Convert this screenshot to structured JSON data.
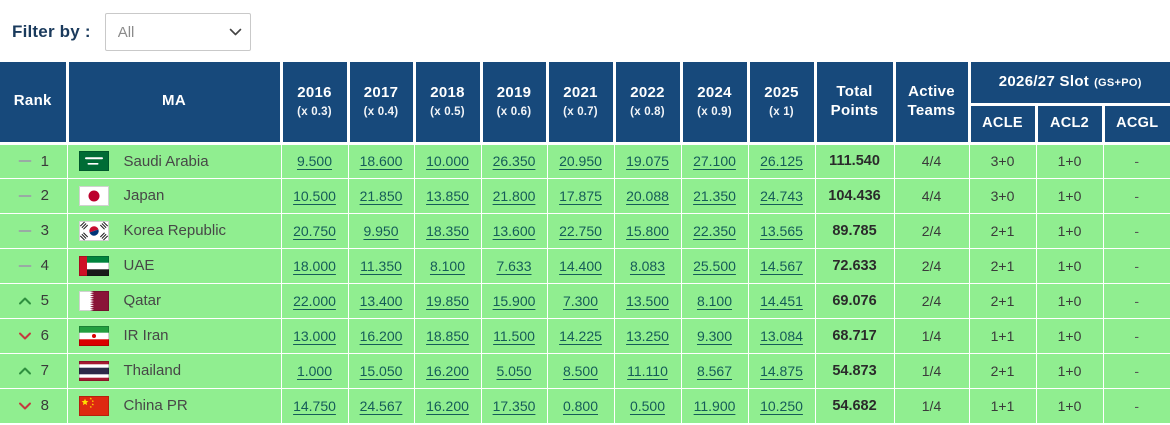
{
  "filter": {
    "label": "Filter by :",
    "selected": "All"
  },
  "colors": {
    "header_bg": "#17497B",
    "row_bg": "#90EE90",
    "link": "#155C58",
    "rank_up": "#2F8F3F",
    "rank_down": "#C6383F",
    "rank_same": "#9AA0A6"
  },
  "table": {
    "headers": {
      "rank": "Rank",
      "ma": "MA",
      "years": [
        {
          "year": "2016",
          "mult": "(x 0.3)"
        },
        {
          "year": "2017",
          "mult": "(x 0.4)"
        },
        {
          "year": "2018",
          "mult": "(x 0.5)"
        },
        {
          "year": "2019",
          "mult": "(x 0.6)"
        },
        {
          "year": "2021",
          "mult": "(x 0.7)"
        },
        {
          "year": "2022",
          "mult": "(x 0.8)"
        },
        {
          "year": "2024",
          "mult": "(x 0.9)"
        },
        {
          "year": "2025",
          "mult": "(x 1)"
        }
      ],
      "total": "Total Points",
      "active": "Active Teams",
      "slot_title": "2026/27 Slot",
      "slot_sub": "(GS+PO)",
      "slot_cols": [
        "ACLE",
        "ACL2",
        "ACGL"
      ]
    },
    "rows": [
      {
        "movement": "same",
        "rank": "1",
        "flag": "sa",
        "country": "Saudi Arabia",
        "values": [
          "9.500",
          "18.600",
          "10.000",
          "26.350",
          "20.950",
          "19.075",
          "27.100",
          "26.125"
        ],
        "total": "111.540",
        "active": "4/4",
        "acle": "3+0",
        "acl2": "1+0",
        "acgl": "-"
      },
      {
        "movement": "same",
        "rank": "2",
        "flag": "jp",
        "country": "Japan",
        "values": [
          "10.500",
          "21.850",
          "13.850",
          "21.800",
          "17.875",
          "20.088",
          "21.350",
          "24.743"
        ],
        "total": "104.436",
        "active": "4/4",
        "acle": "3+0",
        "acl2": "1+0",
        "acgl": "-"
      },
      {
        "movement": "same",
        "rank": "3",
        "flag": "kr",
        "country": "Korea Republic",
        "values": [
          "20.750",
          "9.950",
          "18.350",
          "13.600",
          "22.750",
          "15.800",
          "22.350",
          "13.565"
        ],
        "total": "89.785",
        "active": "2/4",
        "acle": "2+1",
        "acl2": "1+0",
        "acgl": "-"
      },
      {
        "movement": "same",
        "rank": "4",
        "flag": "ae",
        "country": "UAE",
        "values": [
          "18.000",
          "11.350",
          "8.100",
          "7.633",
          "14.400",
          "8.083",
          "25.500",
          "14.567"
        ],
        "total": "72.633",
        "active": "2/4",
        "acle": "2+1",
        "acl2": "1+0",
        "acgl": "-"
      },
      {
        "movement": "up",
        "rank": "5",
        "flag": "qa",
        "country": "Qatar",
        "values": [
          "22.000",
          "13.400",
          "19.850",
          "15.900",
          "7.300",
          "13.500",
          "8.100",
          "14.451"
        ],
        "total": "69.076",
        "active": "2/4",
        "acle": "2+1",
        "acl2": "1+0",
        "acgl": "-"
      },
      {
        "movement": "down",
        "rank": "6",
        "flag": "ir",
        "country": "IR Iran",
        "values": [
          "13.000",
          "16.200",
          "18.850",
          "11.500",
          "14.225",
          "13.250",
          "9.300",
          "13.084"
        ],
        "total": "68.717",
        "active": "1/4",
        "acle": "1+1",
        "acl2": "1+0",
        "acgl": "-"
      },
      {
        "movement": "up",
        "rank": "7",
        "flag": "th",
        "country": "Thailand",
        "values": [
          "1.000",
          "15.050",
          "16.200",
          "5.050",
          "8.500",
          "11.110",
          "8.567",
          "14.875"
        ],
        "total": "54.873",
        "active": "1/4",
        "acle": "2+1",
        "acl2": "1+0",
        "acgl": "-"
      },
      {
        "movement": "down",
        "rank": "8",
        "flag": "cn",
        "country": "China PR",
        "values": [
          "14.750",
          "24.567",
          "16.200",
          "17.350",
          "0.800",
          "0.500",
          "11.900",
          "10.250"
        ],
        "total": "54.682",
        "active": "1/4",
        "acle": "1+1",
        "acl2": "1+0",
        "acgl": "-"
      }
    ]
  }
}
